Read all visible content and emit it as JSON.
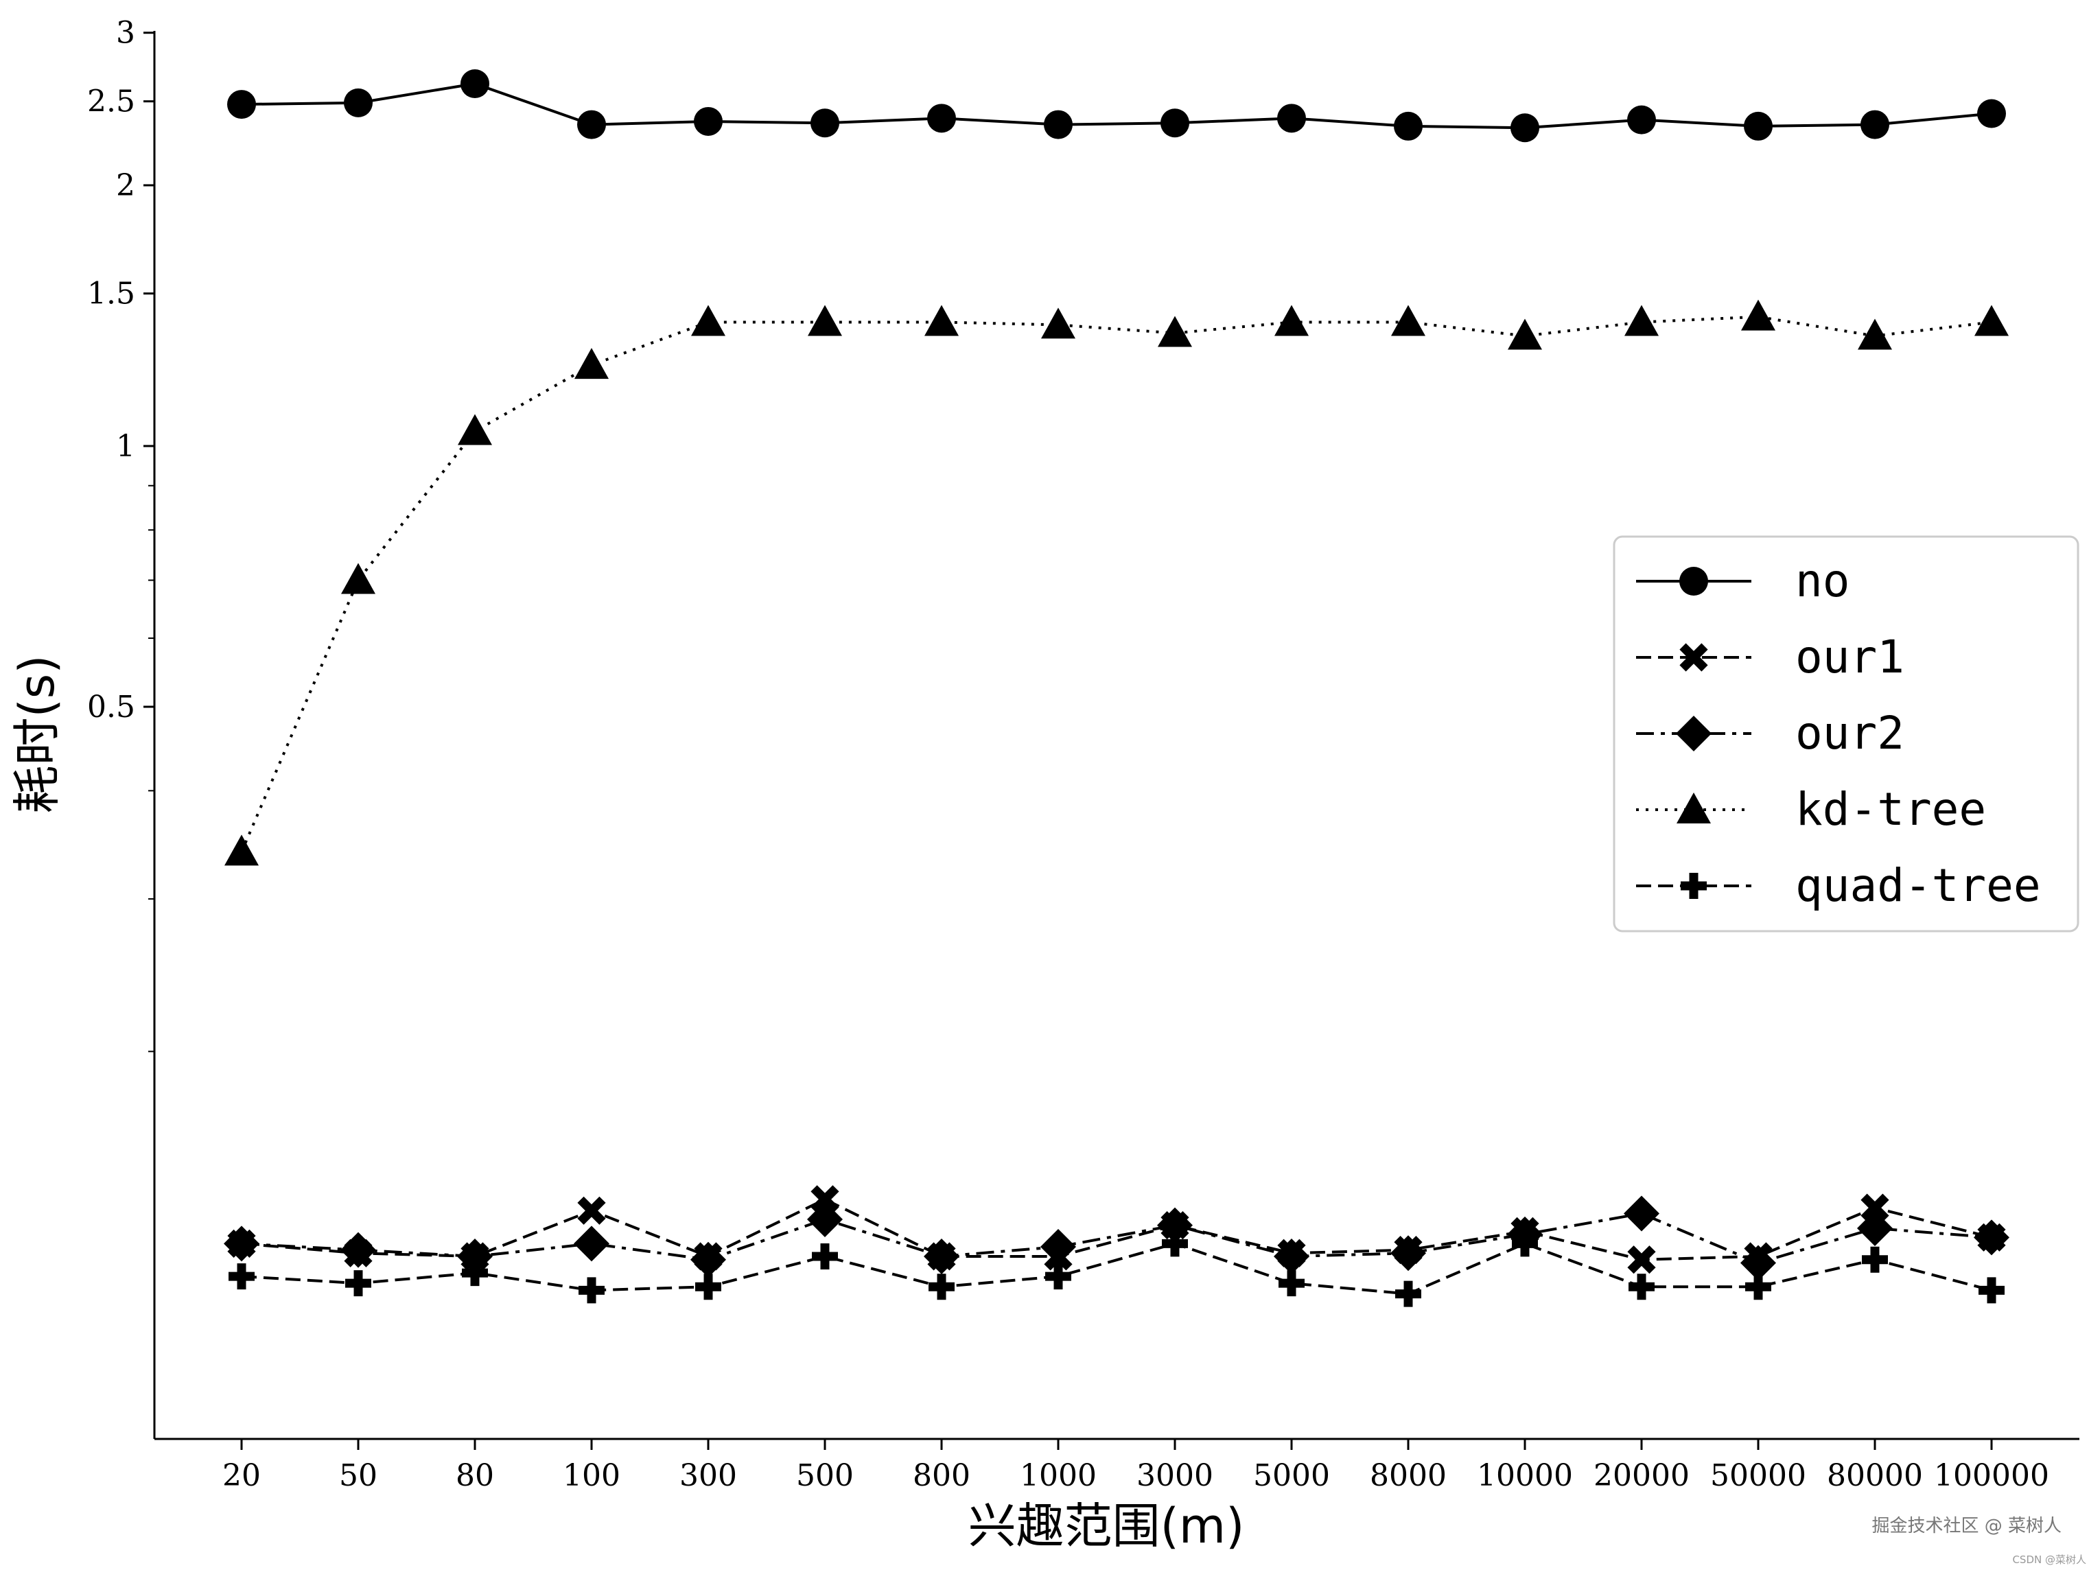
{
  "chart_data": {
    "type": "line",
    "title": "",
    "xlabel": "兴趣范围(m)",
    "ylabel": "耗时(s)",
    "y_scale": "log",
    "ylim": [
      0.1,
      3
    ],
    "y_ticks": [
      {
        "value": 0.5,
        "label": "0.5"
      },
      {
        "value": 1,
        "label": "1"
      },
      {
        "value": 1.5,
        "label": "1.5"
      },
      {
        "value": 2,
        "label": "2"
      },
      {
        "value": 2.5,
        "label": "2.5"
      },
      {
        "value": 3,
        "label": "3"
      }
    ],
    "categories": [
      "20",
      "50",
      "80",
      "100",
      "300",
      "500",
      "800",
      "1000",
      "3000",
      "5000",
      "8000",
      "10000",
      "20000",
      "50000",
      "80000",
      "100000"
    ],
    "grid": false,
    "legend_position": "center-right",
    "series": [
      {
        "name": "no",
        "marker": "circle",
        "linestyle": "solid",
        "color": "#000000",
        "values": [
          2.48,
          2.49,
          2.62,
          2.35,
          2.37,
          2.36,
          2.39,
          2.35,
          2.36,
          2.39,
          2.34,
          2.33,
          2.38,
          2.34,
          2.35,
          2.42
        ]
      },
      {
        "name": "our1",
        "marker": "x",
        "linestyle": "dashed",
        "color": "#000000",
        "values": [
          0.12,
          0.117,
          0.116,
          0.131,
          0.116,
          0.135,
          0.116,
          0.116,
          0.126,
          0.117,
          0.118,
          0.124,
          0.115,
          0.116,
          0.132,
          0.122
        ]
      },
      {
        "name": "our2",
        "marker": "diamond",
        "linestyle": "dashdot",
        "color": "#000000",
        "values": [
          0.12,
          0.118,
          0.116,
          0.12,
          0.115,
          0.128,
          0.116,
          0.119,
          0.126,
          0.116,
          0.117,
          0.123,
          0.13,
          0.114,
          0.125,
          0.122
        ]
      },
      {
        "name": "kd-tree",
        "marker": "triangle",
        "linestyle": "dotted",
        "color": "#000000",
        "values": [
          0.34,
          0.7,
          1.04,
          1.24,
          1.39,
          1.39,
          1.39,
          1.38,
          1.35,
          1.39,
          1.39,
          1.34,
          1.39,
          1.41,
          1.34,
          1.39
        ]
      },
      {
        "name": "quad-tree",
        "marker": "plus",
        "linestyle": "dashed",
        "color": "#000000",
        "values": [
          0.11,
          0.108,
          0.111,
          0.106,
          0.107,
          0.116,
          0.107,
          0.11,
          0.12,
          0.108,
          0.105,
          0.12,
          0.107,
          0.107,
          0.115,
          0.106
        ]
      }
    ]
  },
  "watermark": {
    "main": "掘金技术社区 @ 菜树人",
    "sub": "CSDN @菜树人"
  }
}
